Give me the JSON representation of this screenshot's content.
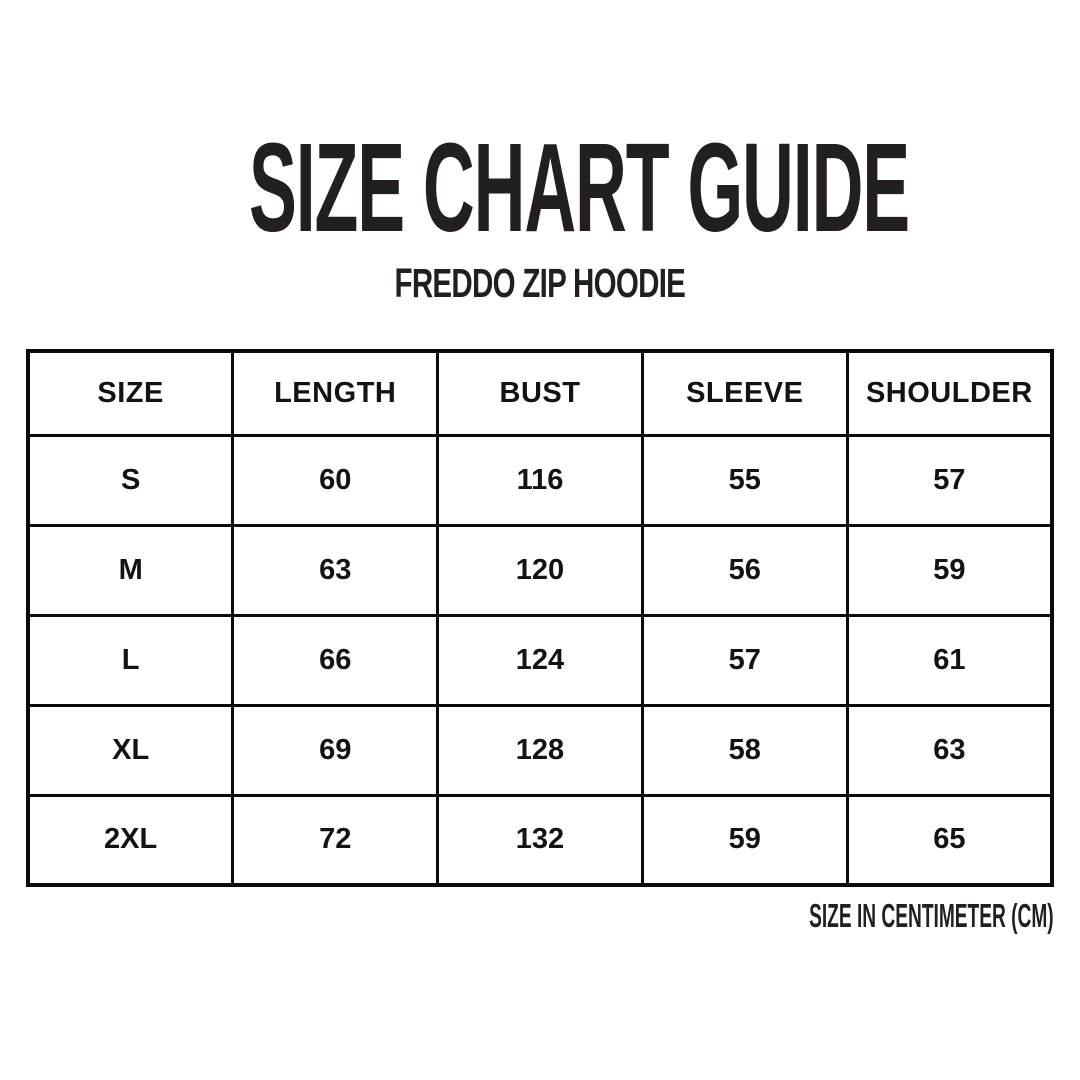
{
  "page": {
    "title": "SIZE CHART GUIDE",
    "subtitle": "FREDDO ZIP HOODIE",
    "footnote": "SIZE IN CENTIMETER (CM)"
  },
  "colors": {
    "background": "#ffffff",
    "ink": "#231f20",
    "table_border": "#0c0b0b",
    "table_text": "#141213"
  },
  "table": {
    "columns": [
      "SIZE",
      "LENGTH",
      "BUST",
      "SLEEVE",
      "SHOULDER"
    ],
    "rows": [
      {
        "values": [
          "S",
          "60",
          "116",
          "55",
          "57"
        ]
      },
      {
        "values": [
          "M",
          "63",
          "120",
          "56",
          "59"
        ]
      },
      {
        "values": [
          "L",
          "66",
          "124",
          "57",
          "61"
        ]
      },
      {
        "values": [
          "XL",
          "69",
          "128",
          "58",
          "63"
        ]
      },
      {
        "values": [
          "2XL",
          "72",
          "132",
          "59",
          "65"
        ]
      }
    ]
  },
  "chart_data": {
    "type": "table",
    "title": "SIZE CHART GUIDE",
    "subtitle": "FREDDO ZIP HOODIE",
    "columns": [
      "SIZE",
      "LENGTH",
      "BUST",
      "SLEEVE",
      "SHOULDER"
    ],
    "rows": [
      [
        "S",
        60,
        116,
        55,
        57
      ],
      [
        "M",
        63,
        120,
        56,
        59
      ],
      [
        "L",
        66,
        124,
        57,
        61
      ],
      [
        "XL",
        69,
        128,
        58,
        63
      ],
      [
        "2XL",
        72,
        132,
        59,
        65
      ]
    ],
    "unit": "cm",
    "footnote": "SIZE IN CENTIMETER (CM)"
  }
}
